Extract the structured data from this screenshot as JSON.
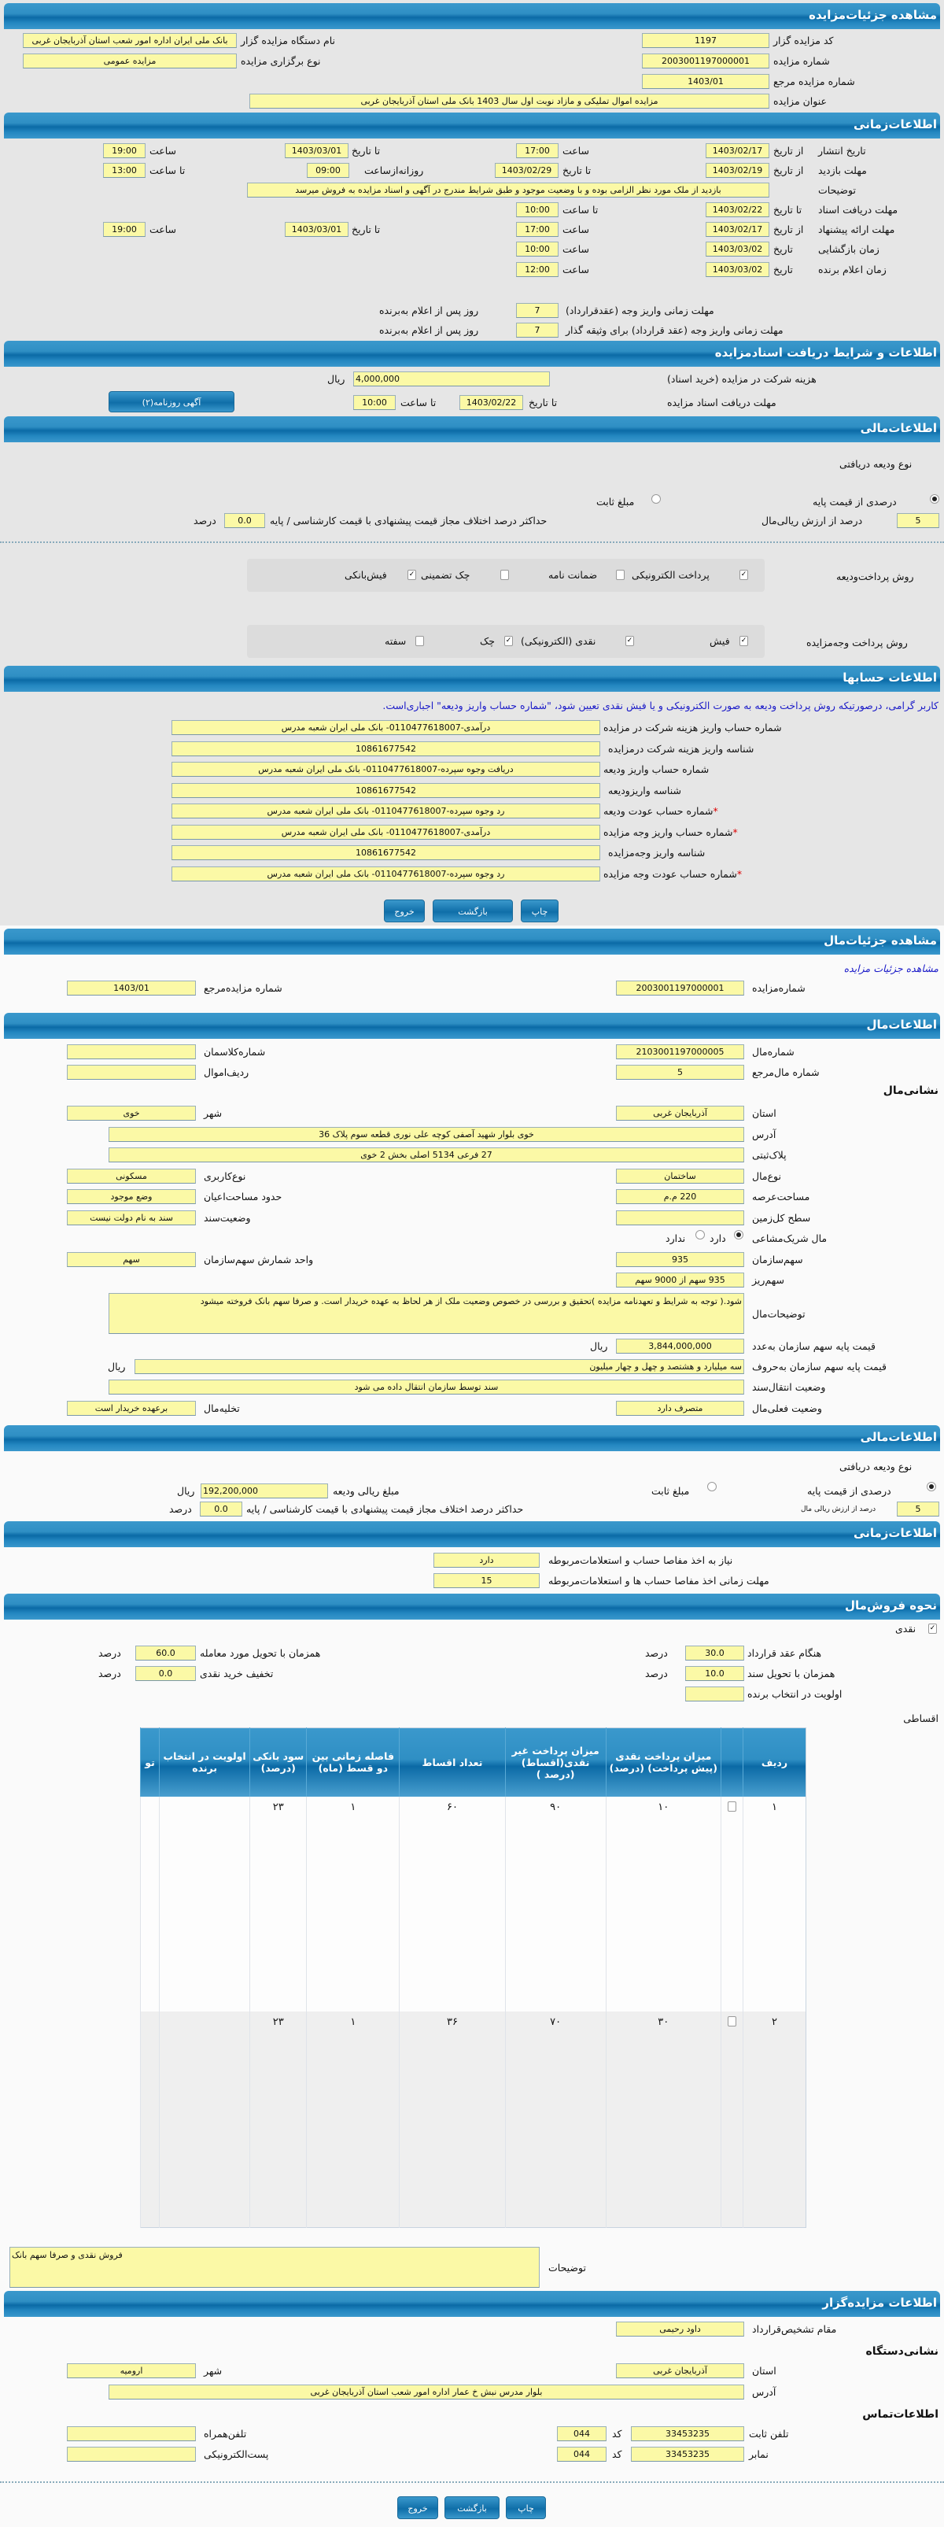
{
  "colors": {
    "header": "#2f8fc4",
    "input_bg": "#fbf9a6",
    "note": "#1a1ac8",
    "page_bg": "#e6e6e6"
  },
  "auction": {
    "title": "مشاهده جزئیات‌مزایده",
    "fields": [
      {
        "label": "کد مزایده گزار",
        "value": "1197"
      },
      {
        "label": "نام دستگاه مزایده گزار",
        "value": "بانک ملی ایران اداره امور شعب استان آذربایجان غربی"
      },
      {
        "label": "شماره مزایده",
        "value": "2003001197000001"
      },
      {
        "label": "نوع برگزاری مزایده",
        "value": "مزایده عمومی"
      },
      {
        "label": "شماره مزایده مرجع",
        "value": "1403/01"
      },
      {
        "label": "عنوان مزایده",
        "value": "مزایده اموال تملیکی و مازاد نوبت اول سال 1403 بانک ملی استان آذربایجان غربی"
      }
    ]
  },
  "time": {
    "title": "اطلاعات‌زمانی",
    "w": {
      "from_date": "از تاریخ",
      "to_date": "تا تاریخ",
      "date": "تاریخ",
      "hour": "ساعت",
      "to_hour": "تا ساعت",
      "daily_from": "روزانه‌ازساعت",
      "days_after": "روز پس از اعلام به‌برنده"
    },
    "publish": {
      "label": "تاریخ انتشار",
      "d1": "1403/02/17",
      "t1": "17:00",
      "d2": "1403/03/01",
      "t2": "19:00"
    },
    "visit": {
      "label": "مهلت بازدید",
      "d1": "1403/02/19",
      "d2": "1403/02/29",
      "t1": "09:00",
      "t2": "13:00"
    },
    "desc": {
      "label": "توضیحات",
      "value": "بازدید از ملک مورد نظر الزامی بوده و با وضعیت موجود و طبق شرایط مندرج در آگهی و اسناد مزایده به فروش میرسد"
    },
    "docs": {
      "label": "مهلت دریافت اسناد",
      "d1": "1403/02/22",
      "t1": "10:00"
    },
    "offer": {
      "label": "مهلت ارائه پیشنهاد",
      "d1": "1403/02/17",
      "t1": "17:00",
      "d2": "1403/03/01",
      "t2": "19:00"
    },
    "open": {
      "label": "زمان بازگشایی",
      "d1": "1403/03/02",
      "t1": "10:00"
    },
    "winner": {
      "label": "زمان اعلام برنده",
      "d1": "1403/03/02",
      "t1": "12:00"
    },
    "pay1": {
      "label": "مهلت زمانی واریز وجه (عقدقرارداد)",
      "value": "7"
    },
    "pay2": {
      "label": "مهلت زمانی واریز وجه (عقد قرارداد) برای وثیقه گذار",
      "value": "7"
    }
  },
  "docs": {
    "title": "اطلاعات و شرایط دریافت اسنادمزایده",
    "fee_label": "هزینه شرکت در مزایده (خرید اسناد)",
    "fee": "4,000,000",
    "rial": "ریال",
    "deadline_label": "مهلت دریافت اسناد مزایده",
    "to_date": "تا تاریخ",
    "date": "1403/02/22",
    "to_hour": "تا ساعت",
    "hour": "10:00",
    "ad_button": "آگهی روزنامه(۲)"
  },
  "finance": {
    "title": "اطلاعات‌مالی",
    "deposit_type": "نوع ودیعه دریافتی",
    "opt_percent": "درصدی از قیمت پایه",
    "opt_percent_checked": true,
    "opt_fixed": "مبلغ ثابت",
    "opt_fixed_checked": false,
    "percent": "5",
    "percent_label": "درصد از ارزش ریالی‌مال",
    "max_diff_label": "حداکثر درصد اختلاف مجاز قیمت پیشنهادی با قیمت کارشناسی / پایه",
    "max_diff": "0.0",
    "percent_unit": "درصد",
    "deposit_method_label": "روش پرداخت‌ودیعه",
    "deposit_methods": [
      {
        "label": "پرداخت الکترونیکی",
        "checked": true
      },
      {
        "label": "ضمانت نامه",
        "checked": false
      },
      {
        "label": "چک تضمینی",
        "checked": false
      },
      {
        "label": "فیش‌بانکی",
        "checked": true
      }
    ],
    "payment_method_label": "روش پرداخت وجه‌مزایده",
    "payment_methods": [
      {
        "label": "فیش",
        "checked": true
      },
      {
        "label": "نقدی (الکترونیکی)",
        "checked": true
      },
      {
        "label": "چک",
        "checked": true
      },
      {
        "label": "سفته",
        "checked": false
      }
    ]
  },
  "accounts": {
    "title": "اطلاعات حسابها",
    "note": "کاربر گرامی، درصورتیکه روش پرداخت ودیعه به صورت الکترونیکی و یا فیش نقدی تعیین شود، \"شماره حساب واریز ودیعه\" اجباری‌است.",
    "required_mark": "*",
    "rows": [
      {
        "label": "شماره حساب واریز هزینه شرکت در مزایده",
        "value": "درآمدی-0110477618007- بانک ملی ایران شعبه مدرس"
      },
      {
        "label": "شناسه واریز هزینه شرکت درمزایده",
        "value": "10861677542"
      },
      {
        "label": "شماره حساب واریز ودیعه",
        "value": "دریافت وجوه سپرده-0110477618007- بانک ملی ایران شعبه مدرس"
      },
      {
        "label": "شناسه واریزودیعه",
        "value": "10861677542"
      },
      {
        "label": "شماره حساب عودت ودیعه",
        "value": "رد وجوه سپرده-0110477618007- بانک ملی ایران شعبه مدرس"
      },
      {
        "label": "شماره حساب واریز وجه مزایده",
        "value": "درآمدی-0110477618007- بانک ملی ایران شعبه مدرس"
      },
      {
        "label": "شناسه واریز وجه‌مزایده",
        "value": "10861677542"
      },
      {
        "label": "شماره حساب عودت وجه مزایده",
        "value": "رد وجوه سپرده-0110477618007- بانک ملی ایران شعبه مدرس"
      }
    ]
  },
  "buttons": {
    "print": "چاپ",
    "back": "بازگشت",
    "exit": "خروج"
  },
  "property_head": {
    "title": "مشاهده جزئیات‌مال",
    "link": "مشاهده جزئیات مزایده",
    "auction_no_label": "شماره‌مزایده",
    "auction_no": "2003001197000001",
    "ref_label": "شماره مزایده‌مرجع",
    "ref": "1403/01"
  },
  "property": {
    "title": "اطلاعات‌مال",
    "address_title": "نشانی‌مال",
    "rial": "ریال",
    "f": {
      "no": {
        "label": "شماره‌مال",
        "value": "2103001197000005"
      },
      "class": {
        "label": "شماره‌کلاسمان",
        "value": ""
      },
      "ref": {
        "label": "شماره مال‌مرجع",
        "value": "5"
      },
      "row": {
        "label": "ردیف‌اموال",
        "value": ""
      },
      "province": {
        "label": "استان",
        "value": "آذربایجان غربی"
      },
      "city": {
        "label": "شهر",
        "value": "خوی"
      },
      "address": {
        "label": "آدرس",
        "value": "خوی بلوار شهید آصفی کوچه علی نوری قطعه سوم پلاک 36"
      },
      "plate": {
        "label": "پلاک‌ثبتی",
        "value": "27 فرعی 5134 اصلی بخش 2 خوی"
      },
      "type": {
        "label": "نوع‌مال",
        "value": "ساختمان"
      },
      "usage": {
        "label": "نوع‌کاربری",
        "value": "مسکونی"
      },
      "area": {
        "label": "مساحت‌عرصه",
        "value": "220 م.م"
      },
      "building": {
        "label": "حدود مساحت‌اعیان",
        "value": "وضع موجود"
      },
      "land": {
        "label": "سطح کل‌زمین",
        "value": ""
      },
      "deed": {
        "label": "وضعیت‌سند",
        "value": "سند به نام دولت نیست"
      },
      "share_org": {
        "label": "سهم‌سازمان",
        "value": "935"
      },
      "share_unit": {
        "label": "واحد شمارش سهم‌سازمان",
        "value": "سهم"
      },
      "share_detail": {
        "label": "سهم‌ریز",
        "value": "935 سهم از 9000 سهم"
      },
      "desc": {
        "label": "توضیحات‌مال",
        "value": "شود.( توجه به شرایط و تعهدنامه مزایده )تحقیق و بررسی در خصوص وضعیت ملک از هر لحاظ به عهده خریدار است. و صرفا سهم بانک فروخته میشود"
      },
      "price_num": {
        "label": "قیمت پایه سهم سازمان به‌عدد",
        "value": "3,844,000,000"
      },
      "price_text": {
        "label": "قیمت پایه سهم سازمان به‌حروف",
        "value": "سه میلیارد و هشتصد و چهل و چهار میلیون"
      },
      "transfer": {
        "label": "وضعیت انتقال‌سند",
        "value": "سند توسط سازمان انتقال داده می شود"
      },
      "status": {
        "label": "وضعیت فعلی‌مال",
        "value": "متصرف دارد"
      },
      "evict": {
        "label": "تخلیه‌مال",
        "value": "برعهده خریدار است"
      }
    },
    "shared": {
      "label": "مال شریک‌مشاعی",
      "yes": "دارد",
      "yes_checked": true,
      "no": "ندارد",
      "no_checked": false
    }
  },
  "finance2": {
    "title": "اطلاعات‌مالی",
    "deposit_type": "نوع ودیعه دریافتی",
    "opt_percent": "درصدی از قیمت پایه",
    "opt_percent_checked": true,
    "opt_fixed": "مبلغ ثابت",
    "opt_fixed_checked": false,
    "amount_label": "مبلغ ریالی ودیعه",
    "amount": "192,200,000",
    "rial": "ریال",
    "percent": "5",
    "percent_label": "درصد از ارزش ریالی مال",
    "max_diff_label": "حداکثر درصد اختلاف مجاز قیمت پیشنهادی با قیمت کارشناسی / پایه",
    "max_diff": "0.0",
    "percent_unit": "درصد"
  },
  "time2": {
    "title": "اطلاعات‌زمانی",
    "clearance_label": "نیاز به اخذ مفاصا حساب و استعلامات‌مربوطه",
    "clearance": "دارد",
    "clearance_days_label": "مهلت زمانی اخذ مفاصا حساب ها و استعلامات‌مربوطه",
    "clearance_days": "15"
  },
  "sale": {
    "title": "نحوه فروش‌مال",
    "cash": "نقدی",
    "cash_checked": true,
    "unit": "درصد",
    "contract_label": "هنگام عقد قرارداد",
    "contract": "30.0",
    "delivery_label": "همزمان با تحویل مورد معامله",
    "delivery": "60.0",
    "deed_label": "همزمان با تحویل سند",
    "deed": "10.0",
    "discount_label": "تخفیف خرید نقدی",
    "discount": "0.0",
    "priority_label": "اولویت در انتخاب برنده",
    "priority": "",
    "installment": "اقساطی",
    "table": {
      "headers": [
        "ردیف",
        "",
        "میزان پرداخت نقدی (پیش پرداخت) (درصد)",
        "میزان پرداخت غیر نقدی(اقساط) (درصد )",
        "تعداد اقساط",
        "فاصله زمانی بین دو قسط (ماه)",
        "سود بانکی (درصد)",
        "اولویت در انتخاب برنده",
        "تو"
      ],
      "rows": [
        [
          "۱",
          "",
          "۱۰",
          "۹۰",
          "۶۰",
          "۱",
          "۲۳",
          "",
          ""
        ],
        [
          "۲",
          "",
          "۳۰",
          "۷۰",
          "۳۶",
          "۱",
          "۲۳",
          "",
          ""
        ]
      ]
    },
    "desc_label": "توضیحات",
    "desc": "فروش نقدی و صرفا سهم بانک"
  },
  "org": {
    "title": "اطلاعات مزایده‌گزار",
    "authority_label": "مقام تشخیص‌قرارداد",
    "authority": "داود رحیمی",
    "address_title": "نشانی‌دستگاه",
    "province_label": "استان",
    "province": "آذربایجان غربی",
    "city_label": "شهر",
    "city": "ارومیه",
    "address_label": "آدرس",
    "address": "بلوار مدرس نبش خ عمار اداره امور شعب استان آذربایجان غربی",
    "contact_title": "اطلاعات‌تماس",
    "phone_label": "تلفن ثابت",
    "phone": "33453235",
    "code_label": "کد",
    "phone_code": "044",
    "mobile_label": "تلفن‌همراه",
    "mobile": "",
    "fax_label": "نمابر",
    "fax": "33453235",
    "fax_code": "044",
    "email_label": "پست‌الکترونیکی",
    "email": ""
  }
}
